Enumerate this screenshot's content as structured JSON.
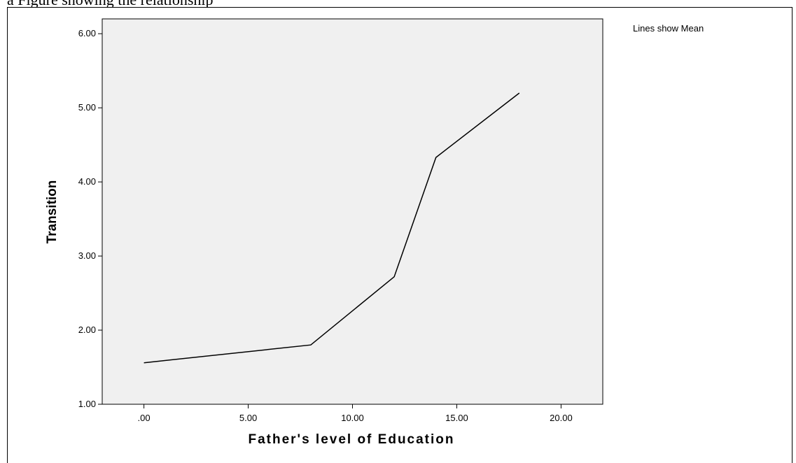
{
  "top_caption": "a Figure showing the relationship",
  "legend_note": "Lines show Mean",
  "chart_data": {
    "type": "line",
    "xlabel": "Father's level of Education",
    "ylabel": "Transition",
    "xlim": [
      -2,
      22
    ],
    "ylim": [
      1.0,
      6.2
    ],
    "x_ticks": [
      0,
      5,
      10,
      15,
      20
    ],
    "x_tick_labels": [
      ".00",
      "5.00",
      "10.00",
      "15.00",
      "20.00"
    ],
    "y_ticks": [
      1,
      2,
      3,
      4,
      5,
      6
    ],
    "y_tick_labels": [
      "1.00",
      "2.00",
      "3.00",
      "4.00",
      "5.00",
      "6.00"
    ],
    "grid": false,
    "plot_background": "#f0f0f0",
    "line_color": "#000000",
    "series": [
      {
        "x": [
          0,
          8,
          12,
          14,
          18
        ],
        "y": [
          1.56,
          1.8,
          2.72,
          4.33,
          5.2
        ]
      }
    ]
  }
}
